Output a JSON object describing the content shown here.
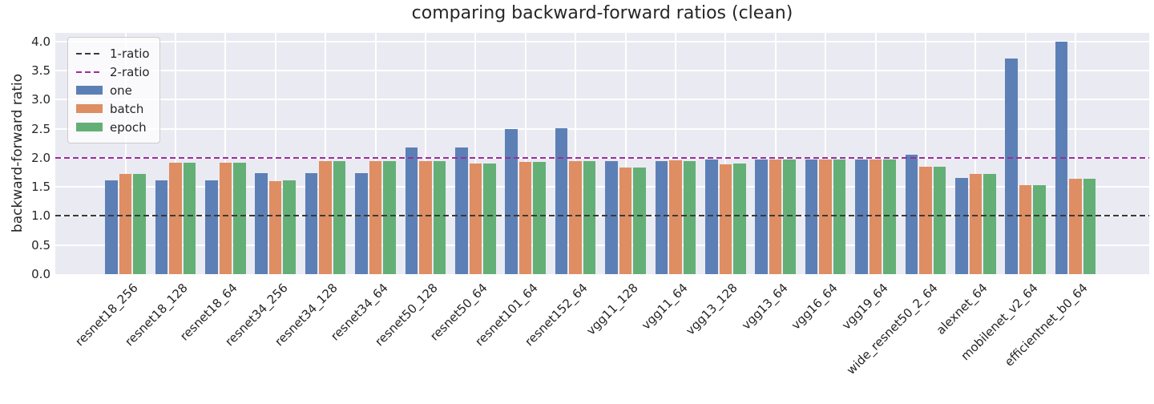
{
  "title": "comparing backward-forward ratios (clean)",
  "ylabel": "backward-forward ratio",
  "colors": {
    "axes_background": "#eaeaf2",
    "grid": "#ffffff",
    "text": "#262626",
    "bar_blue": "#5c80b6",
    "bar_orange": "#de8e62",
    "bar_green": "#64af76",
    "ref_black": "#3a3a3a",
    "ref_magenta": "#9b2d9b"
  },
  "chart_data": {
    "type": "bar",
    "title": "comparing backward-forward ratios (clean)",
    "xlabel": "",
    "ylabel": "backward-forward ratio",
    "grid": true,
    "legend_position": "upper left",
    "ylim": [
      0,
      4.15
    ],
    "yticks": [
      0.0,
      0.5,
      1.0,
      1.5,
      2.0,
      2.5,
      3.0,
      3.5,
      4.0
    ],
    "ytick_labels": [
      "0.0",
      "0.5",
      "1.0",
      "1.5",
      "2.0",
      "2.5",
      "3.0",
      "3.5",
      "4.0"
    ],
    "categories": [
      "resnet18_256",
      "resnet18_128",
      "resnet18_64",
      "resnet34_256",
      "resnet34_128",
      "resnet34_64",
      "resnet50_128",
      "resnet50_64",
      "resnet101_64",
      "resnet152_64",
      "vgg11_128",
      "vgg11_64",
      "vgg13_128",
      "vgg13_64",
      "vgg16_64",
      "vgg19_64",
      "wide_resnet50_2_64",
      "alexnet_64",
      "mobilenet_v2_64",
      "efficientnet_b0_64"
    ],
    "series": [
      {
        "name": "one",
        "color": "#5c80b6",
        "values": [
          1.62,
          1.62,
          1.62,
          1.74,
          1.74,
          1.74,
          2.18,
          2.18,
          2.49,
          2.51,
          1.95,
          1.95,
          1.97,
          1.97,
          1.97,
          1.97,
          2.06,
          1.65,
          3.71,
          4.0
        ]
      },
      {
        "name": "batch",
        "color": "#de8e62",
        "values": [
          1.72,
          1.92,
          1.92,
          1.6,
          1.95,
          1.95,
          1.95,
          1.9,
          1.93,
          1.95,
          1.84,
          1.96,
          1.89,
          1.97,
          1.97,
          1.97,
          1.85,
          1.72,
          1.53,
          1.64
        ]
      },
      {
        "name": "epoch",
        "color": "#64af76",
        "values": [
          1.72,
          1.92,
          1.92,
          1.62,
          1.95,
          1.95,
          1.95,
          1.9,
          1.93,
          1.95,
          1.84,
          1.95,
          1.9,
          1.97,
          1.97,
          1.97,
          1.85,
          1.72,
          1.53,
          1.64
        ]
      }
    ],
    "reference_lines": [
      {
        "label": "1-ratio",
        "value": 1.0,
        "color": "#3a3a3a"
      },
      {
        "label": "2-ratio",
        "value": 2.0,
        "color": "#9b2d9b"
      }
    ]
  }
}
